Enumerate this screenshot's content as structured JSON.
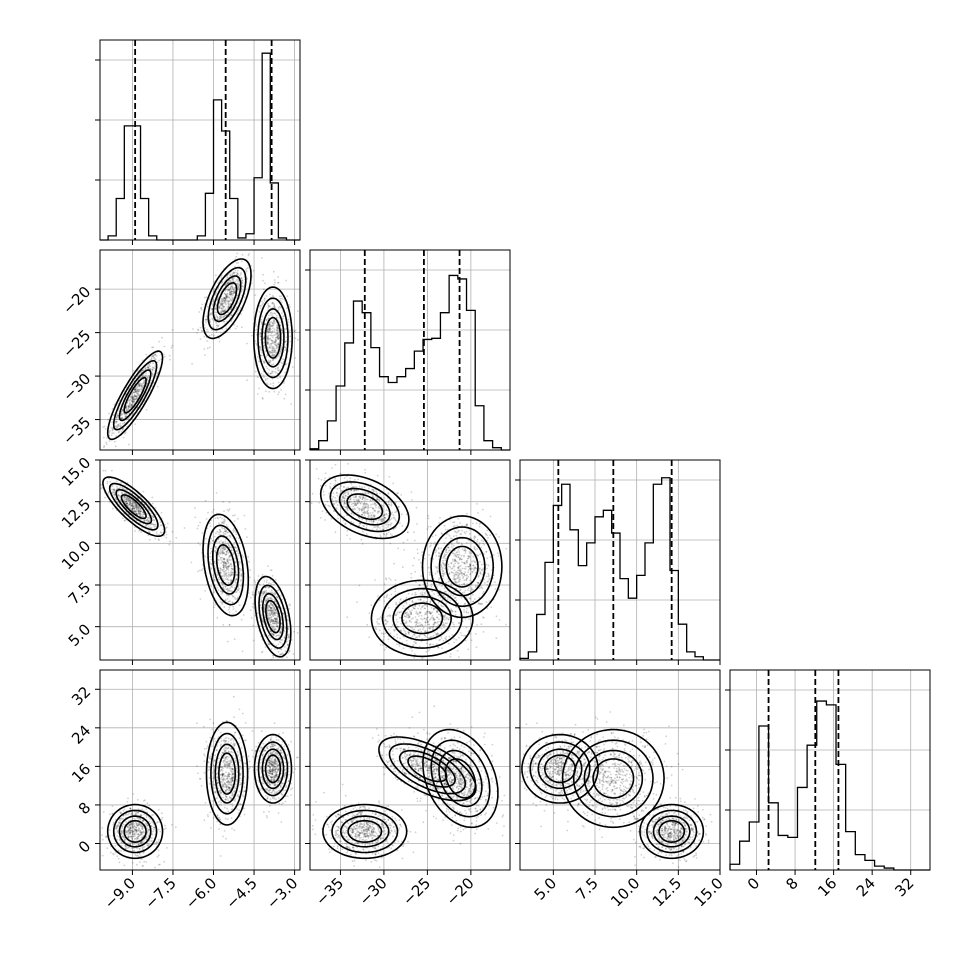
{
  "chart_data": {
    "type": "corner",
    "grid": true,
    "parameters": [
      {
        "range": [
          -10.2,
          -2.8
        ],
        "ticks": [
          -9.0,
          -7.5,
          -6.0,
          -4.5,
          -3.0
        ],
        "ticklabels": [
          "−9.0",
          "−7.5",
          "−6.0",
          "−4.5",
          "−3.0"
        ]
      },
      {
        "range": [
          -38.5,
          -15.5
        ],
        "ticks": [
          -35,
          -30,
          -25,
          -20
        ],
        "ticklabels": [
          "−35",
          "−30",
          "−25",
          "−20"
        ]
      },
      {
        "range": [
          3.0,
          15.0
        ],
        "ticks": [
          5.0,
          7.5,
          10.0,
          12.5,
          15.0
        ],
        "ticklabels": [
          "5.0",
          "7.5",
          "10.0",
          "12.5",
          "15.0"
        ]
      },
      {
        "range": [
          -5.5,
          36.0
        ],
        "ticks": [
          0,
          8,
          16,
          24,
          32
        ],
        "ticklabels": [
          "0",
          "8",
          "16",
          "24",
          "32"
        ]
      }
    ],
    "marginals": [
      {
        "param": 0,
        "edges": [
          -10.2,
          -9.9,
          -9.6,
          -9.3,
          -9.0,
          -8.7,
          -8.4,
          -8.1,
          -7.8,
          -7.5,
          -7.2,
          -6.9,
          -6.6,
          -6.3,
          -6.0,
          -5.7,
          -5.4,
          -5.1,
          -4.8,
          -4.5,
          -4.2,
          -3.9,
          -3.6,
          -3.3,
          -3.0,
          -2.8
        ],
        "counts": [
          0,
          4,
          40,
          110,
          110,
          40,
          4,
          0,
          0,
          0,
          0,
          0,
          4,
          45,
          135,
          105,
          40,
          2,
          6,
          60,
          180,
          55,
          2,
          0,
          0
        ],
        "ymax": 185,
        "quantiles": [
          -8.9,
          -5.55,
          -3.85
        ]
      },
      {
        "param": 1,
        "edges": [
          -38.5,
          -37.5,
          -36.5,
          -35.5,
          -34.5,
          -33.5,
          -32.5,
          -31.5,
          -30.5,
          -29.5,
          -28.5,
          -27.5,
          -26.5,
          -25.5,
          -24.5,
          -23.5,
          -22.5,
          -21.5,
          -20.5,
          -19.5,
          -18.5,
          -17.5,
          -16.5,
          -15.5
        ],
        "counts": [
          1,
          8,
          25,
          55,
          92,
          128,
          118,
          88,
          63,
          58,
          63,
          70,
          85,
          95,
          96,
          118,
          150,
          147,
          120,
          38,
          8,
          2,
          0
        ],
        "ymax": 165,
        "quantiles": [
          -32.2,
          -25.4,
          -21.3
        ]
      },
      {
        "param": 2,
        "edges": [
          3.0,
          3.5,
          4.0,
          4.5,
          5.0,
          5.5,
          6.0,
          6.5,
          7.0,
          7.5,
          8.0,
          8.5,
          9.0,
          9.5,
          10.0,
          10.5,
          11.0,
          11.5,
          12.0,
          12.5,
          13.0,
          13.5,
          14.0,
          14.5,
          15.0
        ],
        "counts": [
          1,
          5,
          28,
          60,
          95,
          108,
          80,
          58,
          72,
          88,
          92,
          78,
          50,
          38,
          52,
          72,
          108,
          112,
          55,
          22,
          5,
          2,
          0,
          0
        ],
        "ymax": 118,
        "quantiles": [
          5.3,
          8.6,
          12.1
        ]
      },
      {
        "param": 3,
        "edges": [
          -5.5,
          -3.5,
          -1.5,
          0.5,
          2.5,
          4.5,
          6.5,
          8.5,
          10.5,
          12.5,
          14.5,
          16.5,
          18.5,
          20.5,
          22.5,
          24.5,
          26.5,
          28.5,
          30.5,
          32.5,
          34.5
        ],
        "counts": [
          3,
          15,
          25,
          75,
          35,
          18,
          17,
          43,
          65,
          88,
          86,
          55,
          20,
          8,
          5,
          2,
          1,
          0,
          0,
          0
        ],
        "ymax": 100,
        "quantiles": [
          2.5,
          12.2,
          17.0
        ]
      }
    ],
    "pairs": [
      {
        "x": 0,
        "y": 1,
        "modes": [
          {
            "cx": -8.9,
            "cy": -32.2,
            "sx": 0.4,
            "sy": 2.0,
            "rho": 0.85,
            "w": 1.0
          },
          {
            "cx": -5.5,
            "cy": -21.1,
            "sx": 0.35,
            "sy": 1.8,
            "rho": 0.6,
            "w": 1.0
          },
          {
            "cx": -3.8,
            "cy": -25.6,
            "sx": 0.28,
            "sy": 2.3,
            "rho": 0.0,
            "w": 1.0
          }
        ]
      },
      {
        "x": 0,
        "y": 2,
        "modes": [
          {
            "cx": -8.95,
            "cy": 12.2,
            "sx": 0.45,
            "sy": 0.7,
            "rho": -0.8,
            "w": 1.0
          },
          {
            "cx": -5.55,
            "cy": 8.7,
            "sx": 0.33,
            "sy": 1.2,
            "rho": -0.3,
            "w": 1.0
          },
          {
            "cx": -3.8,
            "cy": 5.6,
            "sx": 0.26,
            "sy": 0.95,
            "rho": -0.4,
            "w": 1.0
          }
        ]
      },
      {
        "x": 0,
        "y": 3,
        "modes": [
          {
            "cx": -8.9,
            "cy": 2.5,
            "sx": 0.4,
            "sy": 2.2,
            "rho": 0.0,
            "w": 1.0
          },
          {
            "cx": -5.5,
            "cy": 14.5,
            "sx": 0.3,
            "sy": 4.2,
            "rho": 0.0,
            "w": 1.0
          },
          {
            "cx": -3.8,
            "cy": 15.5,
            "sx": 0.27,
            "sy": 2.8,
            "rho": 0.0,
            "w": 1.0
          }
        ]
      },
      {
        "x": 1,
        "y": 2,
        "modes": [
          {
            "cx": -32.2,
            "cy": 12.2,
            "sx": 2.0,
            "sy": 0.75,
            "rho": -0.4,
            "w": 1.0
          },
          {
            "cx": -25.6,
            "cy": 5.5,
            "sx": 2.3,
            "sy": 0.9,
            "rho": 0.0,
            "w": 1.0
          },
          {
            "cx": -21.0,
            "cy": 8.6,
            "sx": 1.8,
            "sy": 1.2,
            "rho": 0.0,
            "w": 1.0
          }
        ]
      },
      {
        "x": 1,
        "y": 3,
        "modes": [
          {
            "cx": -32.2,
            "cy": 2.5,
            "sx": 1.9,
            "sy": 2.2,
            "rho": 0.0,
            "w": 1.0
          },
          {
            "cx": -25.0,
            "cy": 15.5,
            "sx": 2.2,
            "sy": 2.6,
            "rho": -0.6,
            "w": 1.0
          },
          {
            "cx": -21.2,
            "cy": 13.5,
            "sx": 1.7,
            "sy": 4.0,
            "rho": -0.3,
            "w": 1.0
          }
        ]
      },
      {
        "x": 2,
        "y": 3,
        "modes": [
          {
            "cx": 5.4,
            "cy": 15.5,
            "sx": 0.9,
            "sy": 2.8,
            "rho": 0.0,
            "w": 1.0
          },
          {
            "cx": 8.6,
            "cy": 13.5,
            "sx": 1.2,
            "sy": 4.0,
            "rho": 0.0,
            "w": 1.0
          },
          {
            "cx": 12.1,
            "cy": 2.5,
            "sx": 0.75,
            "sy": 2.2,
            "rho": 0.0,
            "w": 1.0
          }
        ]
      }
    ]
  }
}
